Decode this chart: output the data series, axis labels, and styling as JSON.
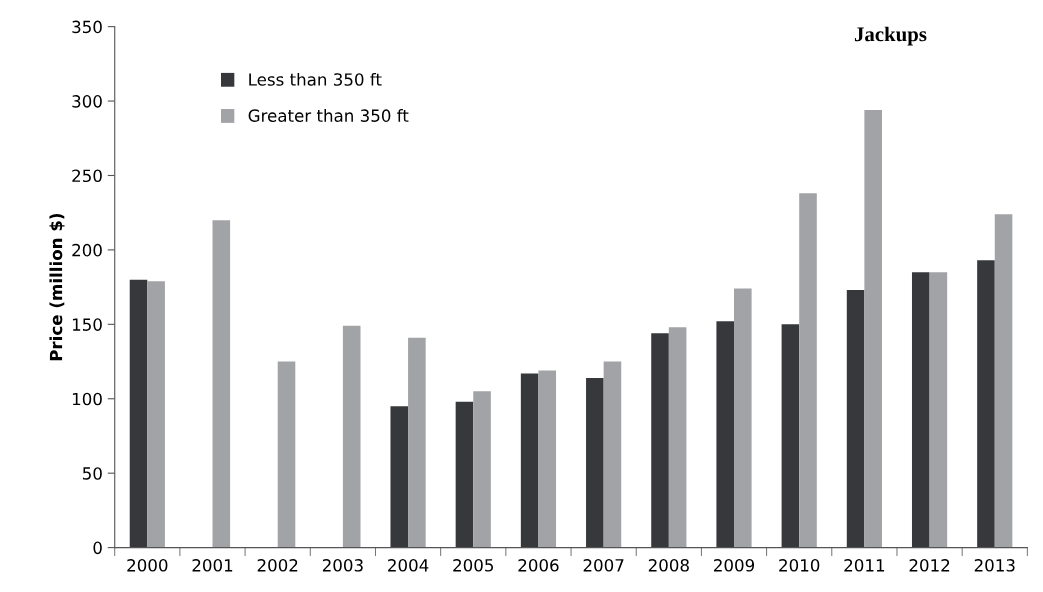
{
  "chart_data": {
    "type": "bar",
    "title": "Jackups",
    "ylabel": "Price (million $)",
    "categories": [
      "2000",
      "2001",
      "2002",
      "2003",
      "2004",
      "2005",
      "2006",
      "2007",
      "2008",
      "2009",
      "2010",
      "2011",
      "2012",
      "2013"
    ],
    "series": [
      {
        "name": "Less than 350 ft",
        "color": "#36383c",
        "values": [
          180,
          null,
          null,
          null,
          95,
          98,
          117,
          114,
          144,
          152,
          150,
          173,
          185,
          193
        ]
      },
      {
        "name": "Greater than 350 ft",
        "color": "#a2a3a6",
        "values": [
          179,
          220,
          125,
          149,
          141,
          105,
          119,
          125,
          148,
          174,
          238,
          294,
          185,
          224
        ]
      }
    ],
    "ylim": [
      0,
      350
    ],
    "yticks": [
      0,
      50,
      100,
      150,
      200,
      250,
      300,
      350
    ],
    "grid": false,
    "legend": "top left"
  }
}
